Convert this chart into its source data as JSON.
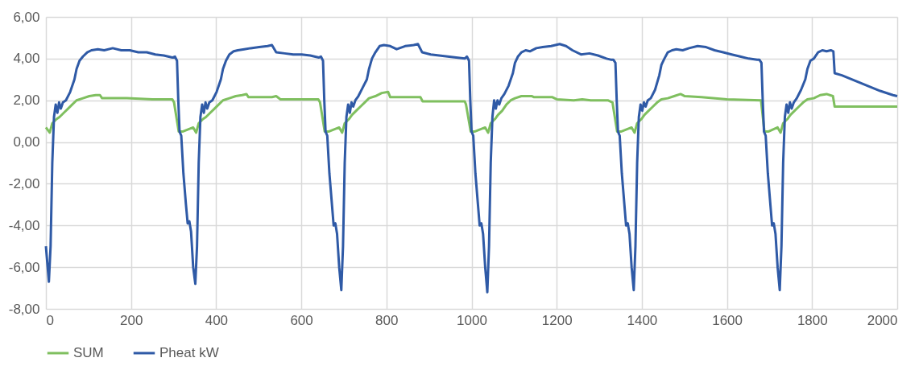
{
  "chart_data": {
    "type": "line",
    "xlim": [
      0,
      2000
    ],
    "xticks": [
      0,
      200,
      400,
      600,
      800,
      1000,
      1200,
      1400,
      1600,
      1800,
      2000
    ],
    "ylim": [
      -8,
      6
    ],
    "yticks": [
      {
        "value": -8,
        "label": "-8,00"
      },
      {
        "value": -6,
        "label": "-6,00"
      },
      {
        "value": -4,
        "label": "-4,00"
      },
      {
        "value": -2,
        "label": "-2,00"
      },
      {
        "value": 0,
        "label": "0,00"
      },
      {
        "value": 2,
        "label": "2,00"
      },
      {
        "value": 4,
        "label": "4,00"
      },
      {
        "value": 6,
        "label": "6,00"
      }
    ],
    "grid": true,
    "legend": "bottom",
    "series": [
      {
        "name": "SUM",
        "color": "#7fbf5f",
        "x": [
          0,
          9,
          15,
          25,
          32,
          42,
          52,
          62,
          72,
          87,
          102,
          117,
          127,
          132,
          190,
          250,
          297,
          301,
          312,
          321,
          346,
          353,
          359,
          369,
          376,
          386,
          396,
          406,
          416,
          431,
          446,
          461,
          471,
          476,
          531,
          541,
          551,
          600,
          640,
          644,
          655,
          664,
          689,
          696,
          702,
          712,
          719,
          729,
          739,
          749,
          759,
          774,
          789,
          804,
          809,
          880,
          885,
          950,
          984,
          987,
          998,
          1007,
          1032,
          1039,
          1045,
          1055,
          1062,
          1072,
          1082,
          1092,
          1102,
          1117,
          1132,
          1142,
          1147,
          1190,
          1200,
          1240,
          1260,
          1280,
          1320,
          1331,
          1342,
          1351,
          1376,
          1383,
          1389,
          1399,
          1406,
          1416,
          1426,
          1436,
          1446,
          1461,
          1476,
          1491,
          1501,
          1540,
          1600,
          1680,
          1688,
          1697,
          1719,
          1726,
          1732,
          1742,
          1749,
          1759,
          1769,
          1779,
          1789,
          1804,
          1819,
          1834,
          1849,
          1853,
          2000
        ],
        "values": [
          0.7,
          0.45,
          0.9,
          1.1,
          1.2,
          1.4,
          1.6,
          1.8,
          2.0,
          2.1,
          2.2,
          2.25,
          2.25,
          2.1,
          2.1,
          2.05,
          2.05,
          1.9,
          0.5,
          0.5,
          0.7,
          0.45,
          0.9,
          1.1,
          1.2,
          1.4,
          1.6,
          1.8,
          2.0,
          2.1,
          2.2,
          2.25,
          2.3,
          2.15,
          2.15,
          2.2,
          2.05,
          2.05,
          2.05,
          1.9,
          0.5,
          0.5,
          0.7,
          0.45,
          0.9,
          1.1,
          1.3,
          1.5,
          1.7,
          1.9,
          2.1,
          2.2,
          2.35,
          2.4,
          2.15,
          2.15,
          1.95,
          1.95,
          1.95,
          1.8,
          0.5,
          0.5,
          0.7,
          0.45,
          0.9,
          1.1,
          1.3,
          1.5,
          1.8,
          2.0,
          2.1,
          2.2,
          2.2,
          2.2,
          2.15,
          2.15,
          2.05,
          2.0,
          2.05,
          2.0,
          2.0,
          1.9,
          0.5,
          0.5,
          0.7,
          0.45,
          0.9,
          1.1,
          1.3,
          1.5,
          1.7,
          1.9,
          2.05,
          2.1,
          2.2,
          2.3,
          2.2,
          2.15,
          2.05,
          2.0,
          0.5,
          0.5,
          0.7,
          0.45,
          0.9,
          1.1,
          1.3,
          1.5,
          1.7,
          1.9,
          2.05,
          2.1,
          2.25,
          2.3,
          2.2,
          1.7,
          1.7
        ]
      },
      {
        "name": "Pheat kW",
        "color": "#2f5aa6",
        "x": [
          0,
          7,
          11,
          15,
          19,
          23,
          27,
          31,
          35,
          40,
          47,
          57,
          67,
          72,
          79,
          87,
          97,
          107,
          122,
          137,
          157,
          177,
          197,
          217,
          237,
          257,
          277,
          297,
          303,
          308,
          311,
          314,
          318,
          323,
          329,
          333,
          337,
          341,
          346,
          351,
          355,
          359,
          363,
          367,
          371,
          375,
          379,
          384,
          391,
          401,
          411,
          416,
          423,
          431,
          441,
          451,
          466,
          481,
          501,
          521,
          531,
          541,
          561,
          581,
          601,
          621,
          641,
          646,
          651,
          654,
          657,
          661,
          666,
          672,
          676,
          680,
          684,
          689,
          694,
          698,
          702,
          706,
          710,
          714,
          718,
          722,
          727,
          734,
          744,
          754,
          759,
          766,
          774,
          784,
          794,
          809,
          824,
          844,
          864,
          874,
          884,
          904,
          924,
          944,
          964,
          984,
          989,
          994,
          997,
          1000,
          1004,
          1009,
          1015,
          1019,
          1023,
          1027,
          1032,
          1037,
          1041,
          1045,
          1049,
          1053,
          1057,
          1061,
          1065,
          1070,
          1077,
          1087,
          1097,
          1102,
          1109,
          1117,
          1127,
          1137,
          1152,
          1167,
          1187,
          1207,
          1222,
          1237,
          1257,
          1277,
          1297,
          1317,
          1327,
          1333,
          1338,
          1341,
          1344,
          1348,
          1353,
          1359,
          1363,
          1367,
          1371,
          1376,
          1381,
          1385,
          1389,
          1393,
          1397,
          1401,
          1405,
          1409,
          1414,
          1421,
          1431,
          1441,
          1446,
          1453,
          1461,
          1471,
          1481,
          1496,
          1511,
          1531,
          1551,
          1571,
          1591,
          1611,
          1631,
          1651,
          1671,
          1676,
          1681,
          1684,
          1687,
          1691,
          1696,
          1702,
          1706,
          1710,
          1714,
          1719,
          1724,
          1728,
          1732,
          1736,
          1740,
          1744,
          1748,
          1752,
          1757,
          1764,
          1774,
          1784,
          1789,
          1796,
          1804,
          1814,
          1824,
          1834,
          1844,
          1850,
          1853,
          1870,
          1900,
          1930,
          1960,
          1990,
          2000
        ],
        "values": [
          -5.0,
          -6.7,
          -5.0,
          -1.0,
          1.2,
          1.8,
          1.4,
          1.9,
          1.6,
          1.9,
          2.0,
          2.4,
          3.0,
          3.5,
          3.9,
          4.1,
          4.3,
          4.4,
          4.45,
          4.4,
          4.5,
          4.4,
          4.4,
          4.3,
          4.3,
          4.2,
          4.15,
          4.05,
          4.1,
          3.9,
          2.0,
          0.5,
          0.3,
          -1.5,
          -3.0,
          -3.9,
          -3.8,
          -4.3,
          -6.0,
          -6.8,
          -5.0,
          -1.0,
          1.2,
          1.8,
          1.4,
          1.9,
          1.6,
          1.9,
          2.0,
          2.4,
          3.0,
          3.5,
          3.9,
          4.2,
          4.35,
          4.4,
          4.45,
          4.5,
          4.55,
          4.6,
          4.65,
          4.3,
          4.25,
          4.2,
          4.2,
          4.15,
          4.05,
          4.1,
          3.9,
          2.0,
          0.5,
          0.3,
          -1.5,
          -3.0,
          -4.0,
          -3.9,
          -4.4,
          -6.0,
          -7.1,
          -5.0,
          -1.0,
          1.2,
          1.8,
          1.4,
          1.9,
          1.7,
          2.0,
          2.2,
          2.6,
          3.0,
          3.5,
          4.0,
          4.3,
          4.6,
          4.65,
          4.6,
          4.45,
          4.6,
          4.65,
          4.7,
          4.3,
          4.2,
          4.15,
          4.1,
          4.05,
          4.0,
          4.1,
          3.9,
          2.0,
          0.5,
          0.3,
          -1.5,
          -3.0,
          -4.0,
          -3.9,
          -4.4,
          -6.0,
          -7.2,
          -5.0,
          -1.0,
          1.2,
          2.0,
          1.6,
          2.0,
          1.8,
          2.1,
          2.3,
          2.7,
          3.3,
          3.8,
          4.1,
          4.3,
          4.4,
          4.35,
          4.5,
          4.55,
          4.6,
          4.7,
          4.6,
          4.4,
          4.2,
          4.25,
          4.15,
          4.0,
          3.95,
          3.95,
          3.8,
          2.0,
          0.5,
          0.3,
          -1.5,
          -3.0,
          -4.0,
          -3.9,
          -4.4,
          -6.0,
          -7.1,
          -5.0,
          -1.0,
          1.2,
          1.8,
          1.5,
          1.9,
          1.7,
          2.0,
          2.1,
          2.5,
          3.2,
          3.7,
          4.0,
          4.3,
          4.4,
          4.45,
          4.4,
          4.5,
          4.6,
          4.55,
          4.4,
          4.3,
          4.2,
          4.1,
          4.0,
          3.95,
          3.95,
          3.8,
          2.0,
          0.5,
          0.3,
          -1.5,
          -3.0,
          -4.0,
          -3.9,
          -4.4,
          -6.0,
          -7.1,
          -5.0,
          -1.0,
          1.2,
          1.8,
          1.4,
          1.9,
          1.6,
          1.9,
          2.1,
          2.5,
          3.0,
          3.5,
          3.9,
          4.0,
          4.3,
          4.4,
          4.35,
          4.4,
          4.35,
          3.3,
          3.2,
          2.95,
          2.7,
          2.45,
          2.25,
          2.2
        ]
      }
    ]
  }
}
